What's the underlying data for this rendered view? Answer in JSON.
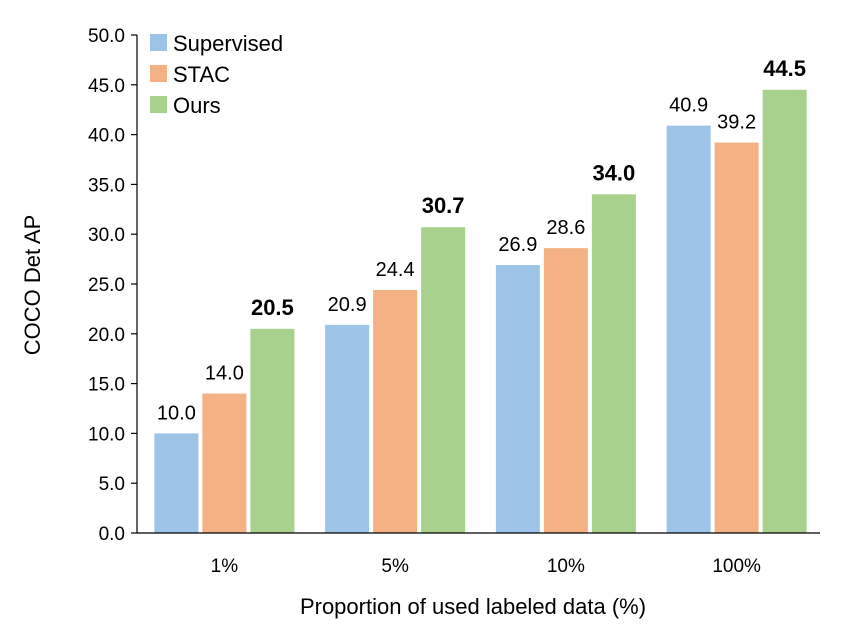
{
  "chart_data": {
    "type": "bar",
    "title": "",
    "xlabel": "Proportion of used labeled data (%)",
    "ylabel": "COCO Det AP",
    "ylim": [
      0,
      50
    ],
    "yticks": [
      "0.0",
      "5.0",
      "10.0",
      "15.0",
      "20.0",
      "25.0",
      "30.0",
      "35.0",
      "40.0",
      "45.0",
      "50.0"
    ],
    "categories": [
      "1%",
      "5%",
      "10%",
      "100%"
    ],
    "grid": false,
    "legend_position": "top-left",
    "series": [
      {
        "name": "Supervised",
        "color": "#9DC3E6",
        "values": [
          10.0,
          20.9,
          26.9,
          40.9
        ],
        "labels": [
          "10.0",
          "20.9",
          "26.9",
          "40.9"
        ],
        "bold_labels": false
      },
      {
        "name": "STAC",
        "color": "#F4B183",
        "values": [
          14.0,
          24.4,
          28.6,
          39.2
        ],
        "labels": [
          "14.0",
          "24.4",
          "28.6",
          "39.2"
        ],
        "bold_labels": false
      },
      {
        "name": "Ours",
        "color": "#A9D18E",
        "values": [
          20.5,
          30.7,
          34.0,
          44.5
        ],
        "labels": [
          "20.5",
          "30.7",
          "34.0",
          "44.5"
        ],
        "bold_labels": true
      }
    ]
  }
}
